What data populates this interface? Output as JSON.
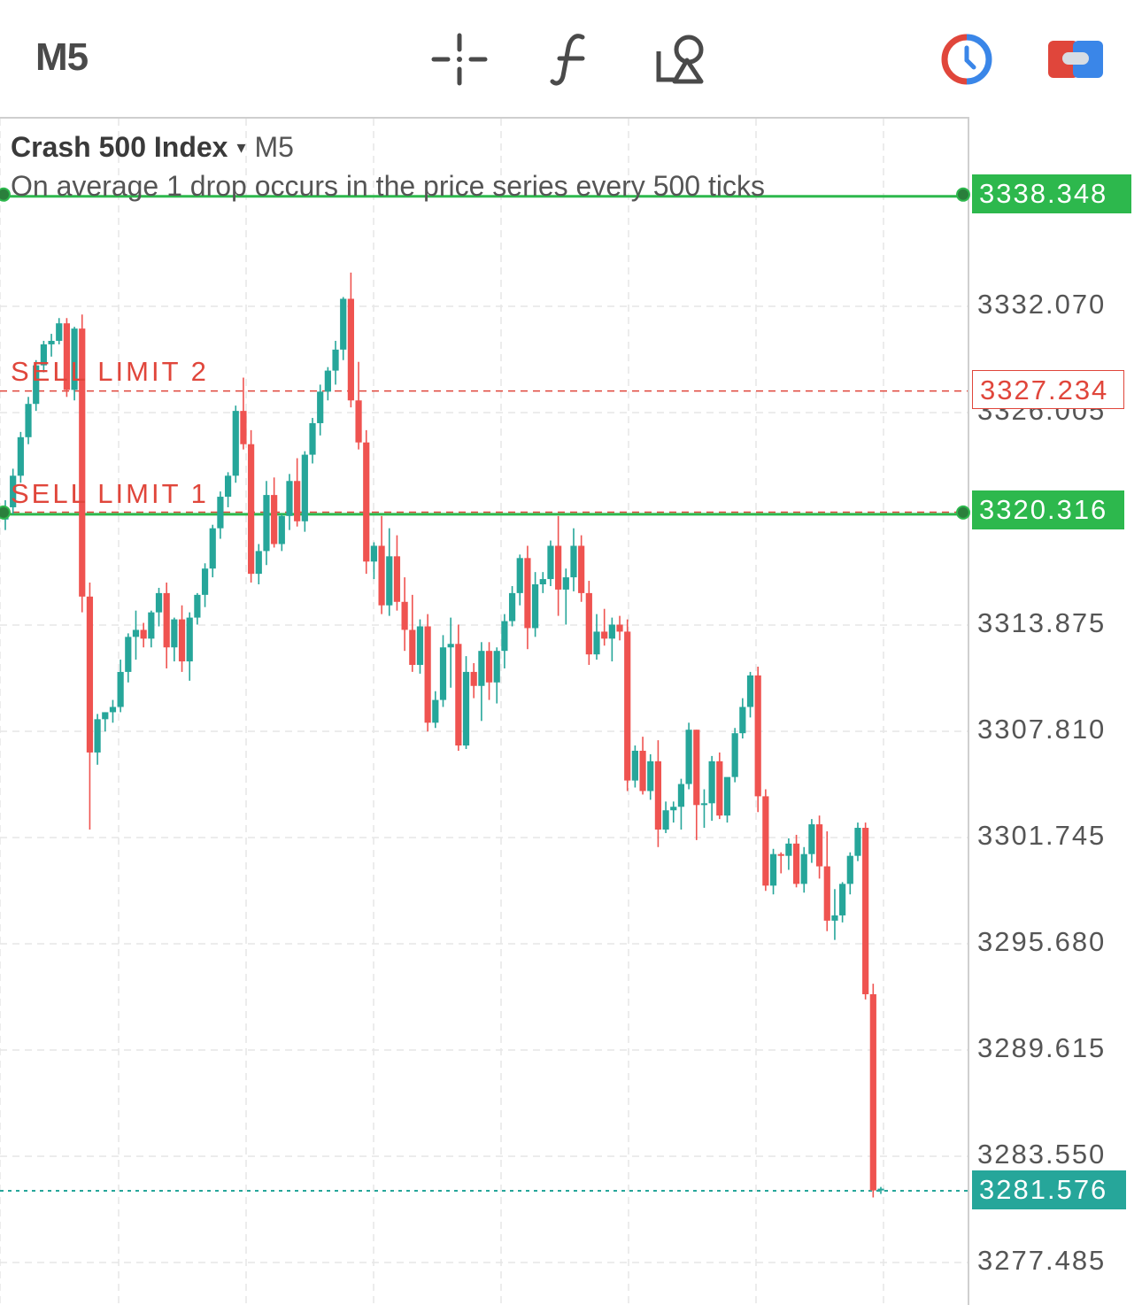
{
  "toolbar": {
    "timeframe": "M5",
    "icons": [
      "crosshair-icon",
      "indicator-f-icon",
      "drawing-tools-icon",
      "timer-icon",
      "account-toggle-icon"
    ],
    "accent_red": "#e0463b",
    "accent_blue": "#3a86e8"
  },
  "legend": {
    "symbol": "Crash 500 Index",
    "arrow": "▾",
    "timeframe": "M5",
    "description": "On average 1 drop occurs in the price series every 500 ticks"
  },
  "orders": [
    {
      "label": "SELL LIMIT 2",
      "price": "3327.234"
    },
    {
      "label": "SELL LIMIT 1",
      "price": "3320.316"
    }
  ],
  "lines": {
    "take_profit_price": "3338.348",
    "current_price": "3281.576"
  },
  "colors": {
    "up": "#26a69a",
    "down": "#ef5350",
    "green_line": "#2db84d",
    "order_red": "#e0463b"
  },
  "chart_data": {
    "type": "candlestick",
    "ylim": [
      3274.5,
      3341.8
    ],
    "y_ticks": [
      "3332.070",
      "3326.005",
      "3313.875",
      "3307.810",
      "3301.745",
      "3295.680",
      "3289.615",
      "3283.550",
      "3277.485"
    ],
    "y_tick_values": [
      3332.07,
      3326.005,
      3313.875,
      3307.81,
      3301.745,
      3295.68,
      3289.615,
      3283.55,
      3277.485
    ],
    "horizontal_lines": [
      {
        "price": 3338.348,
        "style": "solid",
        "color": "#2db84d"
      },
      {
        "price": 3327.234,
        "style": "dashed",
        "color": "#e0463b"
      },
      {
        "price": 3320.316,
        "style": "dashed",
        "color": "#e0463b"
      },
      {
        "price": 3320.2,
        "style": "solid",
        "color": "#2db84d"
      },
      {
        "price": 3281.576,
        "style": "dotted",
        "color": "#26a69a"
      }
    ],
    "candles": [
      [
        3319.9,
        3321.0,
        3319.3,
        3320.6
      ],
      [
        3320.6,
        3322.8,
        3320.2,
        3322.4
      ],
      [
        3322.4,
        3324.9,
        3322.0,
        3324.6
      ],
      [
        3324.6,
        3326.9,
        3324.2,
        3326.5
      ],
      [
        3326.5,
        3329.0,
        3326.1,
        3328.7
      ],
      [
        3328.7,
        3330.1,
        3328.3,
        3329.9
      ],
      [
        3329.9,
        3330.5,
        3329.2,
        3330.1
      ],
      [
        3330.1,
        3331.4,
        3329.9,
        3331.1
      ],
      [
        3331.1,
        3331.4,
        3326.9,
        3327.3
      ],
      [
        3327.3,
        3330.9,
        3326.7,
        3330.8
      ],
      [
        3330.8,
        3331.6,
        3314.6,
        3315.5
      ],
      [
        3315.5,
        3316.3,
        3302.2,
        3306.6
      ],
      [
        3306.6,
        3308.8,
        3305.9,
        3308.5
      ],
      [
        3308.5,
        3308.9,
        3307.8,
        3308.9
      ],
      [
        3308.9,
        3309.6,
        3308.3,
        3309.2
      ],
      [
        3309.2,
        3311.9,
        3308.9,
        3311.2
      ],
      [
        3311.2,
        3313.4,
        3310.6,
        3313.2
      ],
      [
        3313.2,
        3314.7,
        3311.9,
        3313.6
      ],
      [
        3313.6,
        3314.0,
        3312.6,
        3313.1
      ],
      [
        3313.1,
        3314.7,
        3312.6,
        3314.6
      ],
      [
        3314.6,
        3316.0,
        3313.8,
        3315.7
      ],
      [
        3315.7,
        3316.3,
        3311.4,
        3312.6
      ],
      [
        3312.6,
        3314.3,
        3311.8,
        3314.2
      ],
      [
        3314.2,
        3315.0,
        3311.2,
        3311.8
      ],
      [
        3311.8,
        3314.6,
        3310.7,
        3314.3
      ],
      [
        3314.3,
        3315.7,
        3313.9,
        3315.6
      ],
      [
        3315.6,
        3317.4,
        3314.9,
        3317.1
      ],
      [
        3317.1,
        3319.6,
        3316.6,
        3319.4
      ],
      [
        3319.4,
        3321.5,
        3318.8,
        3321.2
      ],
      [
        3321.2,
        3322.6,
        3320.6,
        3322.4
      ],
      [
        3322.4,
        3326.4,
        3322.0,
        3326.1
      ],
      [
        3326.1,
        3328.0,
        3323.9,
        3324.2
      ],
      [
        3324.2,
        3325.0,
        3316.3,
        3316.8
      ],
      [
        3316.8,
        3318.5,
        3316.2,
        3318.1
      ],
      [
        3318.1,
        3322.1,
        3317.3,
        3321.3
      ],
      [
        3321.3,
        3322.3,
        3318.3,
        3318.5
      ],
      [
        3318.5,
        3320.2,
        3318.1,
        3320.1
      ],
      [
        3320.1,
        3322.5,
        3319.3,
        3322.1
      ],
      [
        3322.1,
        3323.4,
        3319.5,
        3319.8
      ],
      [
        3319.8,
        3323.8,
        3319.2,
        3323.6
      ],
      [
        3323.6,
        3325.7,
        3323.1,
        3325.4
      ],
      [
        3325.4,
        3327.6,
        3324.7,
        3327.2
      ],
      [
        3327.2,
        3328.6,
        3326.7,
        3328.4
      ],
      [
        3328.4,
        3330.1,
        3327.6,
        3329.6
      ],
      [
        3329.6,
        3332.6,
        3329.0,
        3332.5
      ],
      [
        3332.5,
        3334.0,
        3326.3,
        3326.7
      ],
      [
        3326.7,
        3328.9,
        3323.9,
        3324.3
      ],
      [
        3324.3,
        3325.0,
        3316.8,
        3317.5
      ],
      [
        3317.5,
        3318.6,
        3316.5,
        3318.4
      ],
      [
        3318.4,
        3320.1,
        3314.5,
        3315.0
      ],
      [
        3315.0,
        3319.4,
        3314.4,
        3317.8
      ],
      [
        3317.8,
        3319.0,
        3314.7,
        3315.2
      ],
      [
        3315.2,
        3316.6,
        3312.4,
        3313.6
      ],
      [
        3313.6,
        3315.6,
        3311.2,
        3311.6
      ],
      [
        3311.6,
        3314.2,
        3311.1,
        3313.8
      ],
      [
        3313.8,
        3314.5,
        3307.8,
        3308.3
      ],
      [
        3308.3,
        3310.1,
        3308.0,
        3309.6
      ],
      [
        3309.6,
        3313.3,
        3309.2,
        3312.6
      ],
      [
        3312.6,
        3314.3,
        3310.3,
        3312.8
      ],
      [
        3312.8,
        3313.9,
        3306.7,
        3307.0
      ],
      [
        3307.0,
        3312.1,
        3306.8,
        3311.2
      ],
      [
        3311.2,
        3311.7,
        3309.7,
        3310.4
      ],
      [
        3310.4,
        3312.9,
        3308.4,
        3312.4
      ],
      [
        3312.4,
        3312.9,
        3309.6,
        3310.6
      ],
      [
        3310.6,
        3312.6,
        3309.4,
        3312.4
      ],
      [
        3312.4,
        3314.5,
        3311.4,
        3314.1
      ],
      [
        3314.1,
        3316.1,
        3313.8,
        3315.7
      ],
      [
        3315.7,
        3317.9,
        3315.0,
        3317.7
      ],
      [
        3317.7,
        3318.4,
        3312.5,
        3313.7
      ],
      [
        3313.7,
        3316.9,
        3313.2,
        3316.2
      ],
      [
        3316.2,
        3316.9,
        3315.7,
        3316.5
      ],
      [
        3316.5,
        3318.7,
        3316.1,
        3318.4
      ],
      [
        3318.4,
        3320.1,
        3314.4,
        3315.9
      ],
      [
        3315.9,
        3317.1,
        3313.9,
        3316.6
      ],
      [
        3316.6,
        3319.4,
        3315.8,
        3318.4
      ],
      [
        3318.4,
        3319.0,
        3315.2,
        3315.7
      ],
      [
        3315.7,
        3316.4,
        3311.6,
        3312.2
      ],
      [
        3312.2,
        3314.5,
        3311.9,
        3313.5
      ],
      [
        3313.5,
        3314.8,
        3312.7,
        3313.1
      ],
      [
        3313.1,
        3314.3,
        3311.8,
        3313.9
      ],
      [
        3313.9,
        3314.4,
        3313.0,
        3313.5
      ],
      [
        3313.5,
        3314.2,
        3304.4,
        3305.0
      ],
      [
        3305.0,
        3307.0,
        3304.6,
        3306.7
      ],
      [
        3306.7,
        3307.5,
        3304.2,
        3304.4
      ],
      [
        3304.4,
        3306.5,
        3303.9,
        3306.1
      ],
      [
        3306.1,
        3307.3,
        3301.2,
        3302.2
      ],
      [
        3302.2,
        3303.8,
        3302.0,
        3303.3
      ],
      [
        3303.3,
        3303.8,
        3302.6,
        3303.5
      ],
      [
        3303.5,
        3305.1,
        3302.2,
        3304.8
      ],
      [
        3304.8,
        3308.3,
        3304.5,
        3307.9
      ],
      [
        3307.9,
        3307.9,
        3301.6,
        3303.6
      ],
      [
        3303.6,
        3304.5,
        3302.3,
        3303.7
      ],
      [
        3303.7,
        3306.4,
        3302.7,
        3306.1
      ],
      [
        3306.1,
        3306.6,
        3302.8,
        3303.0
      ],
      [
        3303.0,
        3305.1,
        3302.6,
        3305.2
      ],
      [
        3305.2,
        3308.0,
        3304.9,
        3307.7
      ],
      [
        3307.7,
        3309.7,
        3307.4,
        3309.2
      ],
      [
        3309.2,
        3311.2,
        3308.6,
        3311.0
      ],
      [
        3311.0,
        3311.5,
        3303.2,
        3304.1
      ],
      [
        3304.1,
        3304.5,
        3298.7,
        3299.0
      ],
      [
        3299.0,
        3301.1,
        3298.5,
        3300.8
      ],
      [
        3300.8,
        3300.9,
        3299.7,
        3300.7
      ],
      [
        3300.7,
        3301.7,
        3299.9,
        3301.4
      ],
      [
        3301.4,
        3301.9,
        3298.9,
        3299.1
      ],
      [
        3299.1,
        3301.2,
        3298.6,
        3300.8
      ],
      [
        3300.8,
        3302.8,
        3300.3,
        3302.5
      ],
      [
        3302.5,
        3303.0,
        3299.4,
        3300.1
      ],
      [
        3300.1,
        3302.1,
        3296.4,
        3297.0
      ],
      [
        3297.0,
        3298.8,
        3295.9,
        3297.3
      ],
      [
        3297.3,
        3299.2,
        3296.9,
        3299.1
      ],
      [
        3299.1,
        3300.9,
        3298.5,
        3300.7
      ],
      [
        3300.7,
        3302.6,
        3300.4,
        3302.3
      ],
      [
        3302.3,
        3302.6,
        3292.5,
        3292.8
      ],
      [
        3292.8,
        3293.4,
        3281.2,
        3281.6
      ],
      [
        3281.6,
        3281.8,
        3281.4,
        3281.7
      ]
    ]
  }
}
